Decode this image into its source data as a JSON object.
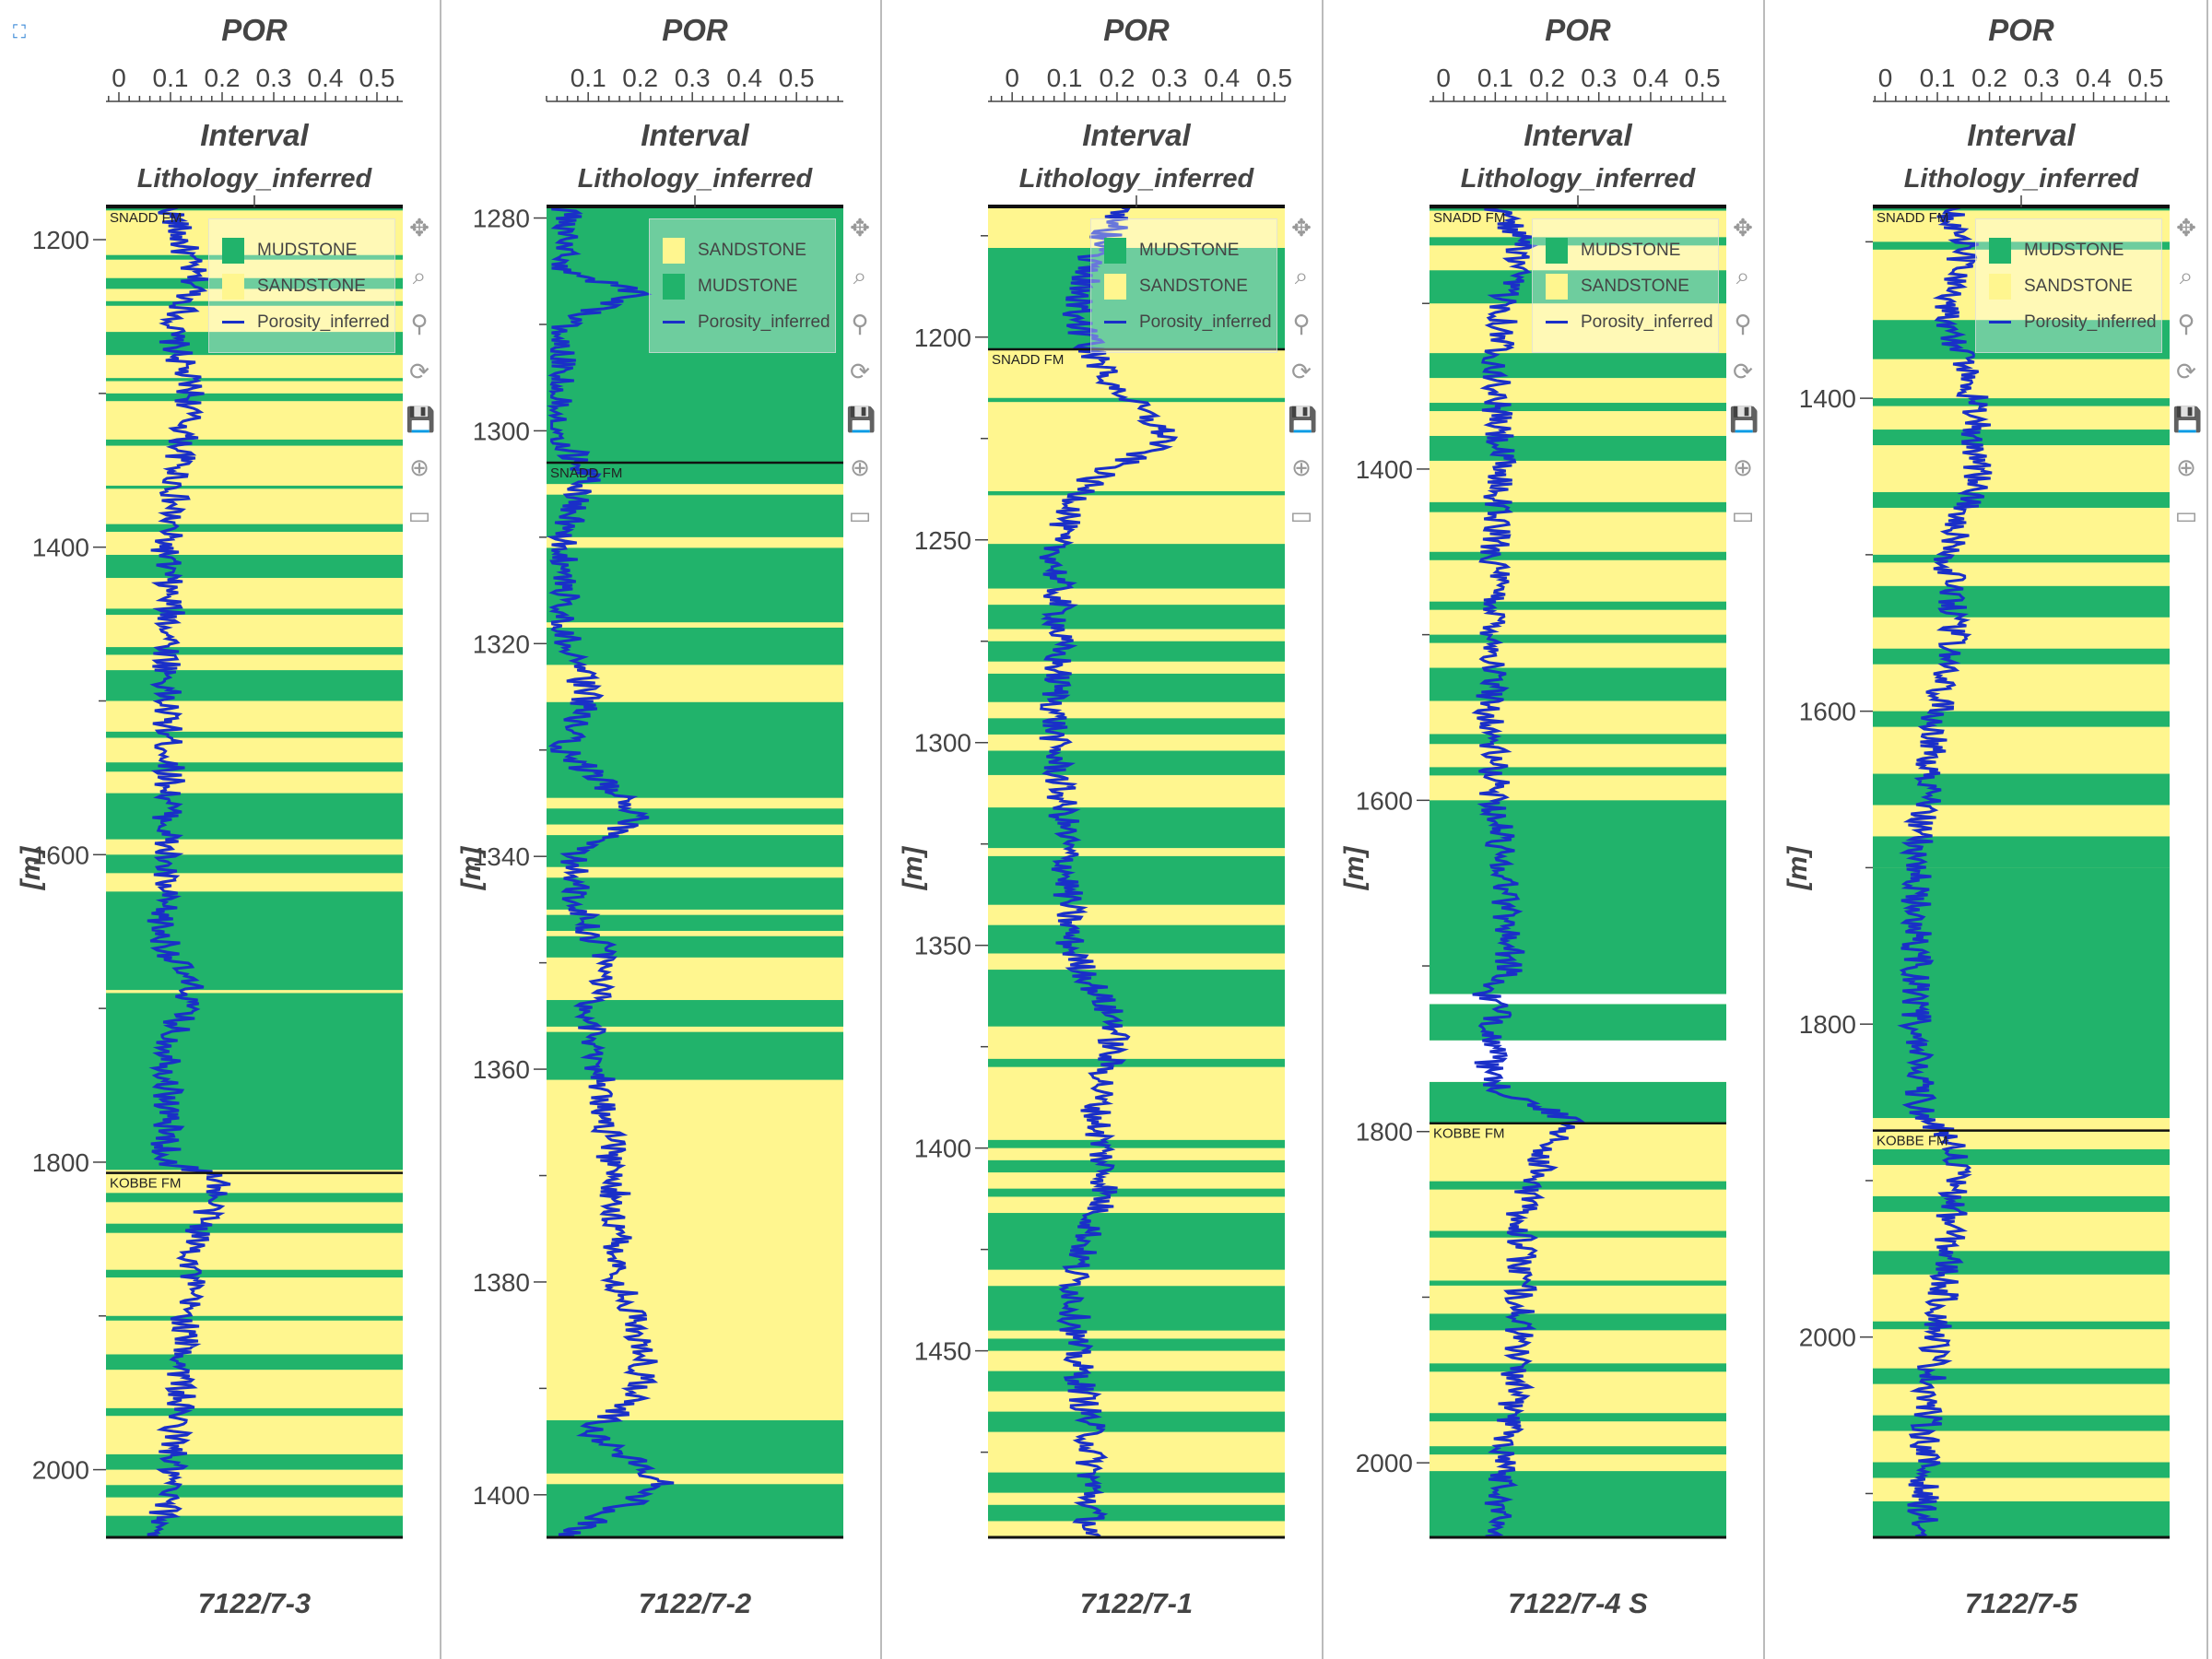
{
  "colors": {
    "mudstone": "#21b36b",
    "sandstone": "#fff68f",
    "porosity": "#1a2fc8",
    "formation_line": "#111111"
  },
  "toolbar_icons": [
    "pan-icon",
    "box-zoom-icon",
    "wheel-zoom-icon",
    "reset-icon",
    "save-icon",
    "crosshair-icon",
    "hover-icon"
  ],
  "chart_data": [
    {
      "type": "line",
      "well": "7122/7-3",
      "title": "POR",
      "subtitle": "Interval",
      "track_label": "Lithology_inferred",
      "ylabel": "[m]",
      "xlim": [
        -0.025,
        0.55
      ],
      "ylim": [
        1179,
        2044
      ],
      "y_inverted": true,
      "xticks": [
        0,
        0.1,
        0.2,
        0.3,
        0.4,
        0.5
      ],
      "yticks": [
        1200,
        1400,
        1600,
        1800,
        2000
      ],
      "legend": [
        "MUDSTONE",
        "SANDSTONE",
        "Porosity_inferred"
      ],
      "base_lithology": "SANDSTONE",
      "formation_tops": [
        {
          "name": "SNADD FM",
          "depth": 1179
        },
        {
          "name": "KOBBE FM",
          "depth": 1807
        }
      ],
      "mudstone_intervals": [
        [
          1179,
          1181
        ],
        [
          1210,
          1213
        ],
        [
          1225,
          1232
        ],
        [
          1240,
          1243
        ],
        [
          1260,
          1275
        ],
        [
          1290,
          1292
        ],
        [
          1300,
          1305
        ],
        [
          1330,
          1334
        ],
        [
          1360,
          1362
        ],
        [
          1385,
          1390
        ],
        [
          1405,
          1420
        ],
        [
          1440,
          1444
        ],
        [
          1465,
          1470
        ],
        [
          1480,
          1500
        ],
        [
          1520,
          1524
        ],
        [
          1540,
          1546
        ],
        [
          1560,
          1590
        ],
        [
          1600,
          1612
        ],
        [
          1624,
          1688
        ],
        [
          1690,
          1805
        ],
        [
          1820,
          1826
        ],
        [
          1840,
          1846
        ],
        [
          1870,
          1875
        ],
        [
          1900,
          1903
        ],
        [
          1925,
          1935
        ],
        [
          1960,
          1965
        ],
        [
          1990,
          2000
        ],
        [
          2010,
          2018
        ],
        [
          2030,
          2044
        ]
      ],
      "porosity": [
        [
          1179,
          0.1
        ],
        [
          1200,
          0.12
        ],
        [
          1230,
          0.15
        ],
        [
          1260,
          0.1
        ],
        [
          1300,
          0.14
        ],
        [
          1340,
          0.12
        ],
        [
          1400,
          0.09
        ],
        [
          1450,
          0.1
        ],
        [
          1500,
          0.09
        ],
        [
          1550,
          0.1
        ],
        [
          1600,
          0.09
        ],
        [
          1650,
          0.08
        ],
        [
          1690,
          0.14
        ],
        [
          1720,
          0.1
        ],
        [
          1800,
          0.09
        ],
        [
          1810,
          0.2
        ],
        [
          1850,
          0.15
        ],
        [
          1900,
          0.13
        ],
        [
          1950,
          0.12
        ],
        [
          2000,
          0.1
        ],
        [
          2044,
          0.08
        ]
      ]
    },
    {
      "type": "line",
      "well": "7122/7-2",
      "title": "POR",
      "subtitle": "Interval",
      "track_label": "Lithology_inferred",
      "ylabel": "[m]",
      "xlim": [
        0.02,
        0.59
      ],
      "ylim": [
        1279,
        1404
      ],
      "y_inverted": true,
      "xticks": [
        0.1,
        0.2,
        0.3,
        0.4,
        0.5
      ],
      "yticks": [
        1280,
        1300,
        1320,
        1340,
        1360,
        1380,
        1400
      ],
      "legend": [
        "SANDSTONE",
        "MUDSTONE",
        "Porosity_inferred"
      ],
      "base_lithology": "MUDSTONE",
      "formation_tops": [
        {
          "name": "SNADD FM",
          "depth": 1303
        }
      ],
      "sandstone_intervals": [
        [
          1305,
          1306
        ],
        [
          1310,
          1311
        ],
        [
          1318,
          1318.5
        ],
        [
          1322,
          1325.5
        ],
        [
          1334.5,
          1335.5
        ],
        [
          1337,
          1338
        ],
        [
          1341,
          1342
        ],
        [
          1345,
          1345.5
        ],
        [
          1347,
          1347.5
        ],
        [
          1349.5,
          1353.5
        ],
        [
          1356,
          1356.5
        ],
        [
          1361,
          1393
        ],
        [
          1398,
          1399
        ]
      ],
      "porosity": [
        [
          1279,
          0.06
        ],
        [
          1285,
          0.05
        ],
        [
          1287,
          0.2
        ],
        [
          1290,
          0.05
        ],
        [
          1300,
          0.04
        ],
        [
          1304,
          0.1
        ],
        [
          1310,
          0.05
        ],
        [
          1320,
          0.06
        ],
        [
          1325,
          0.1
        ],
        [
          1330,
          0.05
        ],
        [
          1336,
          0.2
        ],
        [
          1340,
          0.07
        ],
        [
          1345,
          0.08
        ],
        [
          1350,
          0.14
        ],
        [
          1355,
          0.1
        ],
        [
          1360,
          0.12
        ],
        [
          1370,
          0.15
        ],
        [
          1380,
          0.16
        ],
        [
          1387,
          0.21
        ],
        [
          1391,
          0.2
        ],
        [
          1394,
          0.1
        ],
        [
          1399,
          0.25
        ],
        [
          1404,
          0.05
        ]
      ]
    },
    {
      "type": "line",
      "well": "7122/7-1",
      "title": "POR",
      "subtitle": "Interval",
      "track_label": "Lithology_inferred",
      "ylabel": "[m]",
      "xlim": [
        -0.046,
        0.52
      ],
      "ylim": [
        1168,
        1496
      ],
      "y_inverted": true,
      "xticks": [
        0,
        0.1,
        0.2,
        0.3,
        0.4,
        0.5
      ],
      "yticks": [
        1200,
        1250,
        1300,
        1350,
        1400,
        1450
      ],
      "legend": [
        "MUDSTONE",
        "SANDSTONE",
        "Porosity_inferred"
      ],
      "base_lithology": "SANDSTONE",
      "formation_tops": [
        {
          "name": "SNADD FM",
          "depth": 1203
        }
      ],
      "mudstone_intervals": [
        [
          1178,
          1203
        ],
        [
          1215,
          1216
        ],
        [
          1238,
          1239
        ],
        [
          1251,
          1262
        ],
        [
          1266,
          1272
        ],
        [
          1275,
          1280
        ],
        [
          1283,
          1290
        ],
        [
          1294,
          1298
        ],
        [
          1302,
          1308
        ],
        [
          1316,
          1326
        ],
        [
          1328,
          1340
        ],
        [
          1345,
          1352
        ],
        [
          1356,
          1370
        ],
        [
          1378,
          1380
        ],
        [
          1398,
          1400
        ],
        [
          1403,
          1406
        ],
        [
          1410,
          1412
        ],
        [
          1416,
          1430
        ],
        [
          1434,
          1445
        ],
        [
          1447,
          1450
        ],
        [
          1455,
          1460
        ],
        [
          1465,
          1470
        ],
        [
          1480,
          1485
        ],
        [
          1488,
          1492
        ]
      ],
      "porosity": [
        [
          1168,
          0.22
        ],
        [
          1180,
          0.15
        ],
        [
          1195,
          0.12
        ],
        [
          1210,
          0.18
        ],
        [
          1225,
          0.3
        ],
        [
          1235,
          0.15
        ],
        [
          1250,
          0.08
        ],
        [
          1270,
          0.09
        ],
        [
          1300,
          0.08
        ],
        [
          1320,
          0.1
        ],
        [
          1350,
          0.11
        ],
        [
          1370,
          0.2
        ],
        [
          1390,
          0.16
        ],
        [
          1410,
          0.18
        ],
        [
          1430,
          0.12
        ],
        [
          1450,
          0.12
        ],
        [
          1470,
          0.15
        ],
        [
          1496,
          0.15
        ]
      ]
    },
    {
      "type": "line",
      "well": "7122/7-4 S",
      "title": "POR",
      "subtitle": "Interval",
      "track_label": "Lithology_inferred",
      "ylabel": "[m]",
      "xlim": [
        -0.027,
        0.546
      ],
      "ylim": [
        1242,
        2045
      ],
      "y_inverted": true,
      "xticks": [
        0,
        0.1,
        0.2,
        0.3,
        0.4,
        0.5
      ],
      "yticks": [
        1400,
        1600,
        1800,
        2000
      ],
      "legend": [
        "MUDSTONE",
        "SANDSTONE",
        "Porosity_inferred"
      ],
      "base_lithology": "SANDSTONE",
      "formation_tops": [
        {
          "name": "SNADD FM",
          "depth": 1242
        },
        {
          "name": "KOBBE FM",
          "depth": 1795
        }
      ],
      "mudstone_intervals": [
        [
          1242,
          1244
        ],
        [
          1260,
          1265
        ],
        [
          1280,
          1300
        ],
        [
          1330,
          1345
        ],
        [
          1360,
          1365
        ],
        [
          1380,
          1395
        ],
        [
          1420,
          1426
        ],
        [
          1450,
          1455
        ],
        [
          1480,
          1485
        ],
        [
          1500,
          1505
        ],
        [
          1520,
          1540
        ],
        [
          1560,
          1566
        ],
        [
          1580,
          1585
        ],
        [
          1600,
          1717
        ],
        [
          1723,
          1745
        ],
        [
          1770,
          1795
        ],
        [
          1830,
          1835
        ],
        [
          1860,
          1864
        ],
        [
          1890,
          1893
        ],
        [
          1910,
          1920
        ],
        [
          1940,
          1945
        ],
        [
          1970,
          1975
        ],
        [
          1990,
          1995
        ],
        [
          2005,
          2045
        ]
      ],
      "no_data_intervals": [
        [
          1717,
          1723
        ],
        [
          1745,
          1770
        ]
      ],
      "porosity": [
        [
          1242,
          0.1
        ],
        [
          1260,
          0.15
        ],
        [
          1300,
          0.12
        ],
        [
          1350,
          0.1
        ],
        [
          1400,
          0.11
        ],
        [
          1450,
          0.1
        ],
        [
          1500,
          0.1
        ],
        [
          1550,
          0.09
        ],
        [
          1600,
          0.1
        ],
        [
          1650,
          0.12
        ],
        [
          1700,
          0.13
        ],
        [
          1717,
          0.08
        ],
        [
          1723,
          0.1
        ],
        [
          1745,
          0.1
        ],
        [
          1770,
          0.08
        ],
        [
          1795,
          0.25
        ],
        [
          1810,
          0.2
        ],
        [
          1850,
          0.15
        ],
        [
          1900,
          0.15
        ],
        [
          1950,
          0.14
        ],
        [
          2000,
          0.12
        ],
        [
          2045,
          0.1
        ]
      ]
    },
    {
      "type": "line",
      "well": "7122/7-5",
      "title": "POR",
      "subtitle": "Interval",
      "track_label": "Lithology_inferred",
      "ylabel": "[m]",
      "xlim": [
        -0.024,
        0.546
      ],
      "ylim": [
        1278,
        2128
      ],
      "y_inverted": true,
      "xticks": [
        0,
        0.1,
        0.2,
        0.3,
        0.4,
        0.5
      ],
      "yticks": [
        1400,
        1600,
        1800,
        2000
      ],
      "legend": [
        "MUDSTONE",
        "SANDSTONE",
        "Porosity_inferred"
      ],
      "base_lithology": "SANDSTONE",
      "formation_tops": [
        {
          "name": "SNADD FM",
          "depth": 1278
        },
        {
          "name": "KOBBE FM",
          "depth": 1868
        }
      ],
      "mudstone_intervals": [
        [
          1278,
          1280
        ],
        [
          1300,
          1305
        ],
        [
          1350,
          1375
        ],
        [
          1400,
          1405
        ],
        [
          1420,
          1430
        ],
        [
          1460,
          1470
        ],
        [
          1500,
          1505
        ],
        [
          1520,
          1540
        ],
        [
          1560,
          1570
        ],
        [
          1600,
          1610
        ],
        [
          1640,
          1660
        ],
        [
          1680,
          1700
        ],
        [
          1700,
          1860
        ],
        [
          1880,
          1890
        ],
        [
          1910,
          1920
        ],
        [
          1945,
          1960
        ],
        [
          1990,
          1995
        ],
        [
          2020,
          2030
        ],
        [
          2050,
          2060
        ],
        [
          2080,
          2090
        ],
        [
          2105,
          2128
        ]
      ],
      "porosity": [
        [
          1278,
          0.12
        ],
        [
          1300,
          0.15
        ],
        [
          1350,
          0.12
        ],
        [
          1400,
          0.17
        ],
        [
          1450,
          0.18
        ],
        [
          1500,
          0.12
        ],
        [
          1550,
          0.13
        ],
        [
          1600,
          0.1
        ],
        [
          1650,
          0.08
        ],
        [
          1700,
          0.06
        ],
        [
          1800,
          0.06
        ],
        [
          1860,
          0.07
        ],
        [
          1875,
          0.14
        ],
        [
          1950,
          0.12
        ],
        [
          2000,
          0.1
        ],
        [
          2050,
          0.08
        ],
        [
          2128,
          0.07
        ]
      ]
    }
  ]
}
